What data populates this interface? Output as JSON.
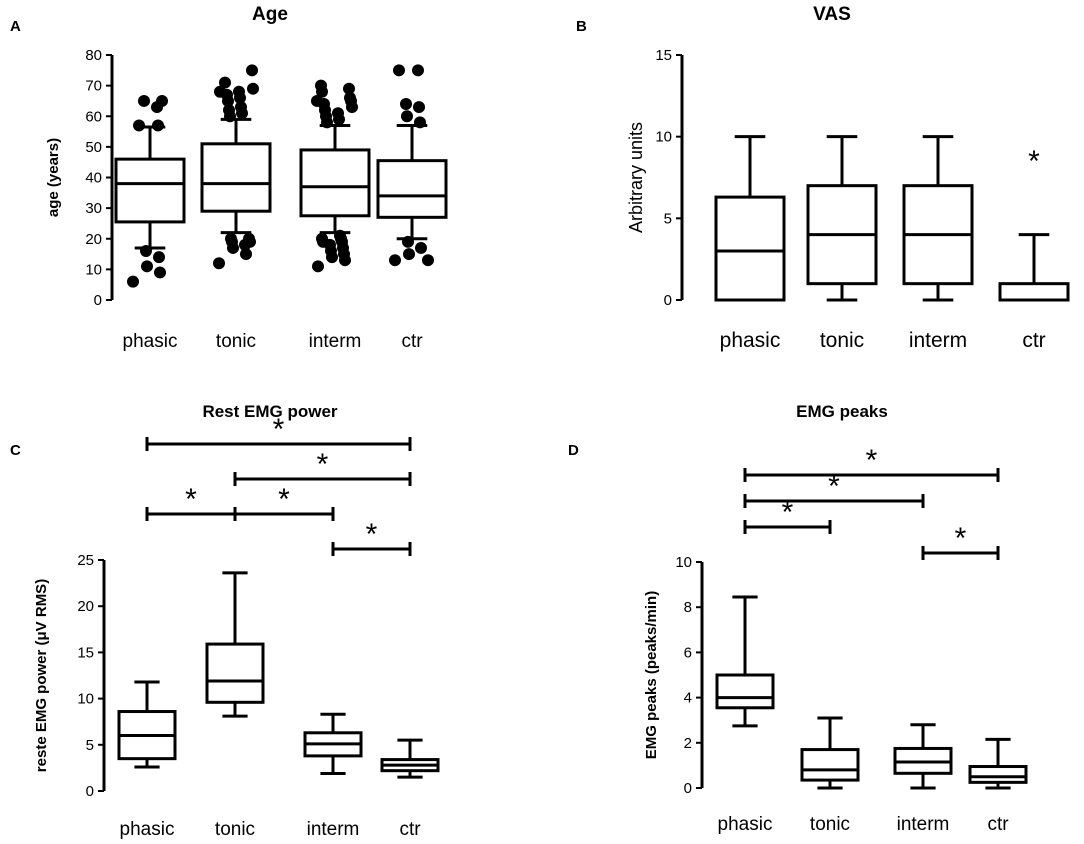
{
  "chart_data": [
    {
      "type": "box",
      "panel": "A",
      "title": "Age",
      "xlabel": "",
      "ylabel": "age (years)",
      "ylim": [
        0,
        80
      ],
      "yticks": [
        0,
        10,
        20,
        30,
        40,
        50,
        60,
        70,
        80
      ],
      "categories": [
        "phasic",
        "tonic",
        "interm",
        "ctr"
      ],
      "boxes": [
        {
          "whisker_low": 17,
          "q1": 25.5,
          "median": 38,
          "q3": 46,
          "whisker_high": 56.5
        },
        {
          "whisker_low": 22,
          "q1": 29,
          "median": 38,
          "q3": 51,
          "whisker_high": 59
        },
        {
          "whisker_low": 22,
          "q1": 27.5,
          "median": 37,
          "q3": 49,
          "whisker_high": 57
        },
        {
          "whisker_low": 20,
          "q1": 27,
          "median": 34,
          "q3": 45.5,
          "whisker_high": 57
        }
      ],
      "outliers": [
        [
          6,
          9,
          11,
          14,
          16,
          57,
          57,
          63,
          65,
          65
        ],
        [
          12,
          15,
          17,
          18,
          19,
          19,
          20,
          20,
          60,
          61,
          62,
          63,
          65,
          66,
          67,
          68,
          68,
          69,
          71,
          75
        ],
        [
          11,
          13,
          14,
          15,
          16,
          17,
          18,
          19,
          19,
          20,
          20,
          21,
          58,
          59,
          60,
          61,
          62,
          63,
          64,
          65,
          65,
          66,
          68,
          69,
          70
        ],
        [
          13,
          13,
          15,
          17,
          19,
          58,
          60,
          63,
          64,
          75,
          75
        ]
      ],
      "significance": []
    },
    {
      "type": "box",
      "panel": "B",
      "title": "VAS",
      "xlabel": "",
      "ylabel": "Arbitrary units",
      "ylim": [
        0,
        15
      ],
      "yticks": [
        0,
        5,
        10,
        15
      ],
      "categories": [
        "phasic",
        "tonic",
        "interm",
        "ctr"
      ],
      "boxes": [
        {
          "whisker_low": 0,
          "q1": 0,
          "median": 3,
          "q3": 6.3,
          "whisker_high": 10
        },
        {
          "whisker_low": 0,
          "q1": 1,
          "median": 4,
          "q3": 7,
          "whisker_high": 10
        },
        {
          "whisker_low": 0,
          "q1": 1,
          "median": 4,
          "q3": 7,
          "whisker_high": 10
        },
        {
          "whisker_low": 0,
          "q1": 0,
          "median": 0,
          "q3": 1,
          "whisker_high": 4
        }
      ],
      "outliers": [
        [],
        [],
        [],
        []
      ],
      "star_labels": [
        {
          "category": 3,
          "value": 8.5,
          "text": "*"
        }
      ],
      "significance": []
    },
    {
      "type": "box",
      "panel": "C",
      "title": "Rest EMG power",
      "xlabel": "",
      "ylabel": "reste EMG power (μV RMS)",
      "ylim": [
        0,
        25
      ],
      "yticks": [
        0,
        5,
        10,
        15,
        20,
        25
      ],
      "categories": [
        "phasic",
        "tonic",
        "interm",
        "ctr"
      ],
      "boxes": [
        {
          "whisker_low": 2.6,
          "q1": 3.5,
          "median": 6,
          "q3": 8.6,
          "whisker_high": 11.8
        },
        {
          "whisker_low": 8.1,
          "q1": 9.6,
          "median": 11.9,
          "q3": 15.9,
          "whisker_high": 23.6
        },
        {
          "whisker_low": 1.9,
          "q1": 3.8,
          "median": 5.1,
          "q3": 6.3,
          "whisker_high": 8.3
        },
        {
          "whisker_low": 1.5,
          "q1": 2.2,
          "median": 2.8,
          "q3": 3.4,
          "whisker_high": 5.5
        }
      ],
      "outliers": [
        [],
        [],
        [],
        []
      ],
      "significance": [
        {
          "from": 0,
          "to": 3,
          "level": 3,
          "label": "*"
        },
        {
          "from": 1,
          "to": 3,
          "level": 2,
          "label": "*"
        },
        {
          "from": 0,
          "to": 1,
          "level": 1,
          "label": "*"
        },
        {
          "from": 1,
          "to": 2,
          "level": 1,
          "label": "*"
        },
        {
          "from": 2,
          "to": 3,
          "level": 0,
          "label": "*"
        }
      ]
    },
    {
      "type": "box",
      "panel": "D",
      "title": "EMG peaks",
      "xlabel": "",
      "ylabel": "EMG peaks (peaks/min)",
      "ylim": [
        0,
        10
      ],
      "yticks": [
        0,
        2,
        4,
        6,
        8,
        10
      ],
      "categories": [
        "phasic",
        "tonic",
        "interm",
        "ctr"
      ],
      "boxes": [
        {
          "whisker_low": 2.75,
          "q1": 3.55,
          "median": 4,
          "q3": 5,
          "whisker_high": 8.45
        },
        {
          "whisker_low": 0,
          "q1": 0.35,
          "median": 0.8,
          "q3": 1.7,
          "whisker_high": 3.1
        },
        {
          "whisker_low": 0,
          "q1": 0.65,
          "median": 1.15,
          "q3": 1.75,
          "whisker_high": 2.8
        },
        {
          "whisker_low": 0,
          "q1": 0.25,
          "median": 0.5,
          "q3": 0.95,
          "whisker_high": 2.15
        }
      ],
      "outliers": [
        [],
        [],
        [],
        []
      ],
      "significance": [
        {
          "from": 0,
          "to": 3,
          "level": 3,
          "label": "*"
        },
        {
          "from": 0,
          "to": 2,
          "level": 2,
          "label": "*"
        },
        {
          "from": 0,
          "to": 1,
          "level": 1,
          "label": "*"
        },
        {
          "from": 2,
          "to": 3,
          "level": 0,
          "label": "*"
        }
      ]
    }
  ]
}
